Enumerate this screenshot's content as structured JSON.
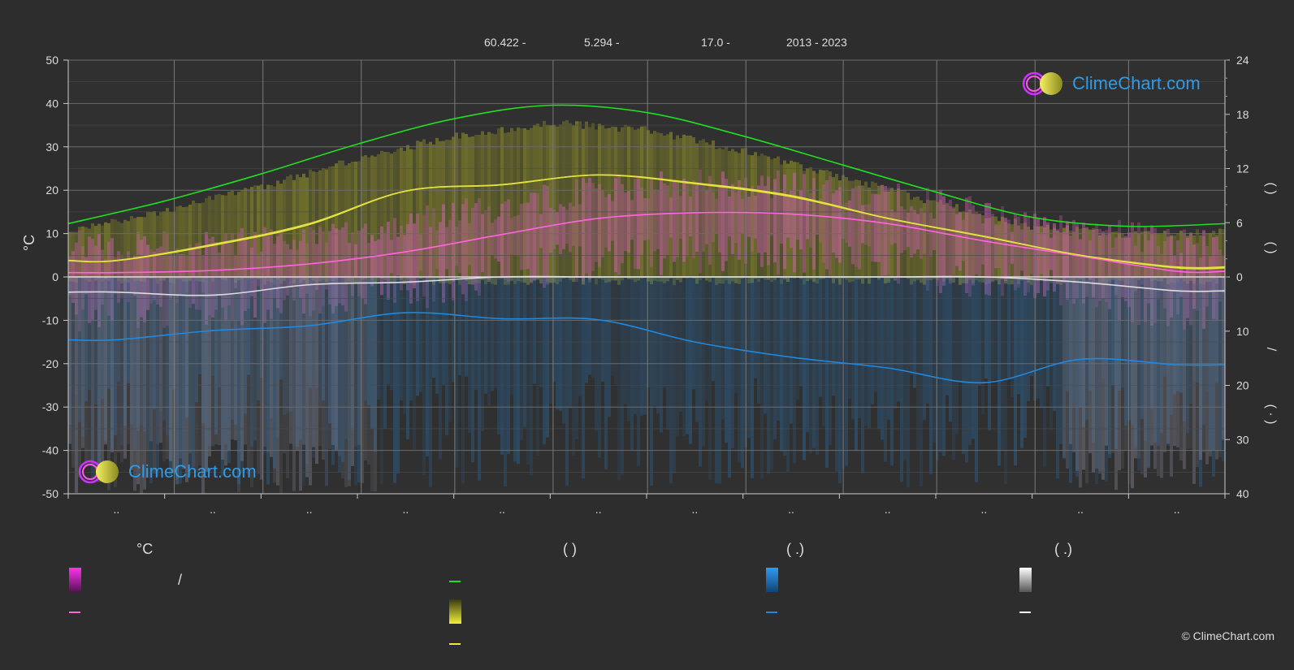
{
  "header": {
    "lat": "60.422 -",
    "lon": "5.294 -",
    "elev": "17.0 -",
    "years": "2013 - 2023"
  },
  "logo": {
    "text": "ClimeChart.com"
  },
  "copyright": "© ClimeChart.com",
  "legend": {
    "col1_head": "°C",
    "col1_slash": "/",
    "col2_head": "(          )",
    "col3_head": "(   .)",
    "col4_head": "(   .)"
  },
  "colors": {
    "background": "#2d2d2d",
    "daylight": "#22dd22",
    "sunshine": "#e8e83a",
    "temp_mean": "#ff66dd",
    "precip": "#2288dd",
    "snow": "#ffffff"
  },
  "chart_data": {
    "type": "line",
    "x_unit": "month",
    "months": [
      "..",
      "..",
      "..",
      "..",
      "..",
      "..",
      "..",
      "..",
      "..",
      "..",
      "..",
      ".."
    ],
    "y_left": {
      "label": "°C",
      "ylim": [
        -50,
        50
      ],
      "ticks": [
        50,
        40,
        30,
        20,
        10,
        0,
        -10,
        -20,
        -30,
        -40,
        -50
      ]
    },
    "y_right_top": {
      "ylim": [
        0,
        24
      ],
      "ticks": [
        24,
        18,
        12,
        6,
        0
      ]
    },
    "y_right_bottom": {
      "ylim": [
        0,
        40
      ],
      "ticks": [
        0,
        10,
        20,
        30,
        40
      ]
    },
    "right_labels": [
      "(   )",
      "(   )",
      "/",
      "(  ·  )"
    ],
    "series": [
      {
        "key": "daylight",
        "axis": "hours",
        "x": [
          0,
          1,
          2,
          3,
          4,
          5,
          6,
          7,
          8,
          9,
          10,
          11,
          12
        ],
        "values": [
          5.9,
          8.4,
          11.4,
          14.7,
          17.5,
          19.0,
          18.2,
          15.6,
          12.5,
          9.4,
          6.6,
          5.6,
          5.9
        ]
      },
      {
        "key": "sunshine",
        "axis": "hours",
        "x": [
          0,
          0.5,
          1.5,
          2.5,
          3.5,
          4.5,
          5.5,
          6.5,
          7.5,
          8.5,
          9.5,
          10.5,
          11.5,
          12
        ],
        "values": [
          1.8,
          1.8,
          3.5,
          5.8,
          9.5,
          10.2,
          11.3,
          10.4,
          9.0,
          6.5,
          4.5,
          2.4,
          1.0,
          1.0
        ]
      },
      {
        "key": "temp_mean",
        "axis": "celsius",
        "x": [
          0,
          0.5,
          1.5,
          2.5,
          3.5,
          4.5,
          5.5,
          6.5,
          7.5,
          8.5,
          9.5,
          10.5,
          11.5,
          12
        ],
        "values": [
          1.0,
          1.0,
          1.5,
          3.0,
          5.8,
          9.8,
          13.5,
          14.8,
          14.5,
          12.3,
          8.3,
          4.8,
          1.3,
          1.3
        ]
      },
      {
        "key": "sunshine_mean",
        "axis": "celsius",
        "x": [
          0,
          0.5,
          1.5,
          2.5,
          3.5,
          4.5,
          5.5,
          6.5,
          7.5,
          8.5,
          9.5,
          10.5,
          11.5,
          12
        ],
        "values": [
          3.8,
          3.8,
          7.5,
          12.3,
          19.8,
          21.3,
          23.5,
          21.5,
          18.5,
          13.5,
          9.3,
          5.0,
          2.3,
          2.3
        ]
      },
      {
        "key": "snow",
        "axis": "celsius",
        "x": [
          0,
          0.5,
          1.5,
          2.5,
          3.5,
          4.5,
          5.5,
          6.5,
          7.5,
          8.5,
          9.5,
          10.5,
          11.5,
          12
        ],
        "values": [
          -3.5,
          -3.5,
          -4.2,
          -1.8,
          -1.2,
          0,
          0,
          0,
          0,
          0,
          0,
          -1.2,
          -3.2,
          -3.2
        ]
      },
      {
        "key": "precip",
        "axis": "mm",
        "x": [
          0,
          0.5,
          1.5,
          2.5,
          3.5,
          4.5,
          5.5,
          6.5,
          7.5,
          8.5,
          9.5,
          10.5,
          11.5,
          12
        ],
        "values": [
          11.6,
          11.6,
          9.9,
          9.0,
          6.6,
          7.7,
          7.9,
          12.0,
          14.8,
          16.8,
          19.5,
          15.2,
          16.2,
          16.2
        ]
      }
    ]
  }
}
